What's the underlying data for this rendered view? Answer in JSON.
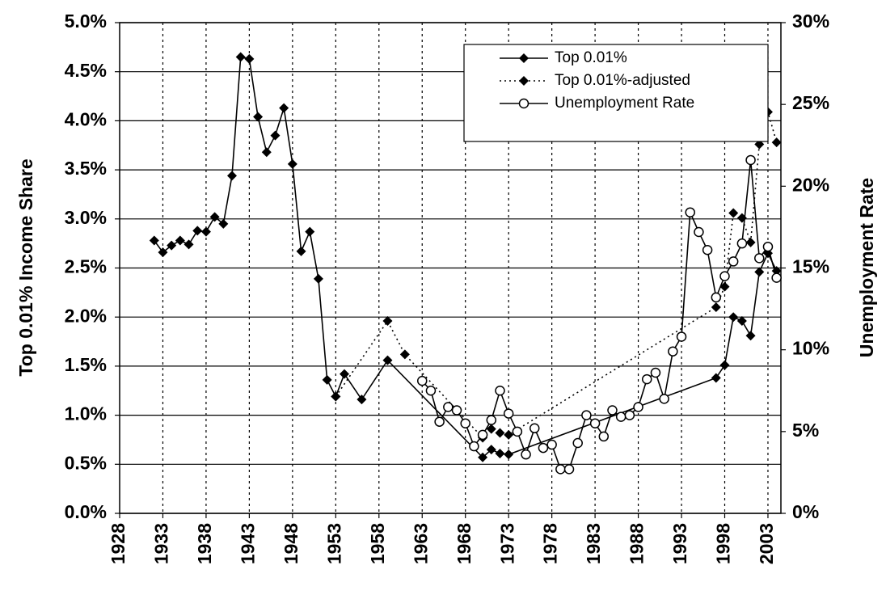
{
  "chart_data": {
    "type": "line",
    "ylabel": "Top 0.01% Income Share",
    "y2label": "Unemployment Rate",
    "xlim": [
      1928,
      2004.5
    ],
    "xticks": [
      1928,
      1933,
      1938,
      1943,
      1948,
      1953,
      1958,
      1963,
      1968,
      1973,
      1978,
      1983,
      1988,
      1993,
      1998,
      2003
    ],
    "ylim": [
      0,
      5
    ],
    "yticks": [
      {
        "value": 0,
        "label": "0.0%"
      },
      {
        "value": 0.5,
        "label": "0.5%"
      },
      {
        "value": 1,
        "label": "1.0%"
      },
      {
        "value": 1.5,
        "label": "1.5%"
      },
      {
        "value": 2,
        "label": "2.0%"
      },
      {
        "value": 2.5,
        "label": "2.5%"
      },
      {
        "value": 3,
        "label": "3.0%"
      },
      {
        "value": 3.5,
        "label": "3.5%"
      },
      {
        "value": 4,
        "label": "4.0%"
      },
      {
        "value": 4.5,
        "label": "4.5%"
      },
      {
        "value": 5,
        "label": "5.0%"
      }
    ],
    "y2lim": [
      0,
      30
    ],
    "y2ticks": [
      {
        "value": 0,
        "label": "0%"
      },
      {
        "value": 5,
        "label": "5%"
      },
      {
        "value": 10,
        "label": "10%"
      },
      {
        "value": 15,
        "label": "15%"
      },
      {
        "value": 20,
        "label": "20%"
      },
      {
        "value": 25,
        "label": "25%"
      },
      {
        "value": 30,
        "label": "30%"
      }
    ],
    "grid": true,
    "legend": "upper right",
    "series": [
      {
        "name": "Top 0.01%",
        "color": "#000000",
        "line_style": "solid",
        "marker": "diamond",
        "x": [
          1932,
          1933,
          1934,
          1935,
          1936,
          1937,
          1938,
          1939,
          1940,
          1941,
          1942,
          1943,
          1944,
          1945,
          1946,
          1947,
          1948,
          1949,
          1950,
          1951,
          1952,
          1953,
          1954,
          1956,
          1959,
          1970,
          1971,
          1972,
          1973,
          1997,
          1998,
          1999,
          2000,
          2001,
          2002,
          2003,
          2004
        ],
        "values": [
          2.78,
          2.66,
          2.73,
          2.78,
          2.74,
          2.88,
          2.87,
          3.02,
          2.95,
          3.44,
          4.65,
          4.63,
          4.04,
          3.68,
          3.85,
          4.13,
          3.56,
          2.67,
          2.87,
          2.39,
          1.36,
          1.19,
          1.42,
          1.16,
          1.56,
          0.57,
          0.65,
          0.61,
          0.6,
          1.38,
          1.51,
          2.0,
          1.96,
          1.81,
          2.46,
          2.65,
          2.47
        ]
      },
      {
        "name": "Top 0.01%-adjusted",
        "color": "#000000",
        "line_style": "dotted",
        "marker": "diamond",
        "x": [
          1953,
          1959,
          1961,
          1970,
          1971,
          1972,
          1973,
          1997,
          1998,
          1999,
          2000,
          2001,
          2002,
          2003,
          2004
        ],
        "values": [
          1.19,
          1.96,
          1.62,
          0.77,
          0.86,
          0.82,
          0.8,
          2.1,
          2.31,
          3.06,
          3.01,
          2.76,
          3.76,
          4.09,
          3.78
        ]
      },
      {
        "name": "Unemployment Rate",
        "color": "#000000",
        "line_style": "solid",
        "marker": "circle",
        "axis": "y2",
        "x": [
          1963,
          1964,
          1965,
          1966,
          1967,
          1968,
          1969,
          1970,
          1971,
          1972,
          1973,
          1974,
          1975,
          1976,
          1977,
          1978,
          1979,
          1980,
          1981,
          1982,
          1983,
          1984,
          1985,
          1986,
          1987,
          1988,
          1989,
          1990,
          1991,
          1992,
          1993,
          1994,
          1995,
          1996,
          1997,
          1998,
          1999,
          2000,
          2001,
          2002,
          2003,
          2004
        ],
        "values": [
          8.1,
          7.5,
          5.6,
          6.5,
          6.3,
          5.5,
          4.1,
          4.8,
          5.7,
          7.5,
          6.1,
          5.0,
          3.6,
          5.2,
          4.0,
          4.2,
          2.7,
          2.7,
          4.3,
          6.0,
          5.5,
          4.7,
          6.3,
          5.9,
          6.0,
          6.5,
          8.2,
          8.6,
          7.0,
          9.9,
          10.8,
          18.4,
          17.2,
          16.1,
          13.2,
          14.5,
          15.4,
          16.5,
          21.6,
          15.6,
          16.3,
          14.4
        ]
      }
    ]
  }
}
